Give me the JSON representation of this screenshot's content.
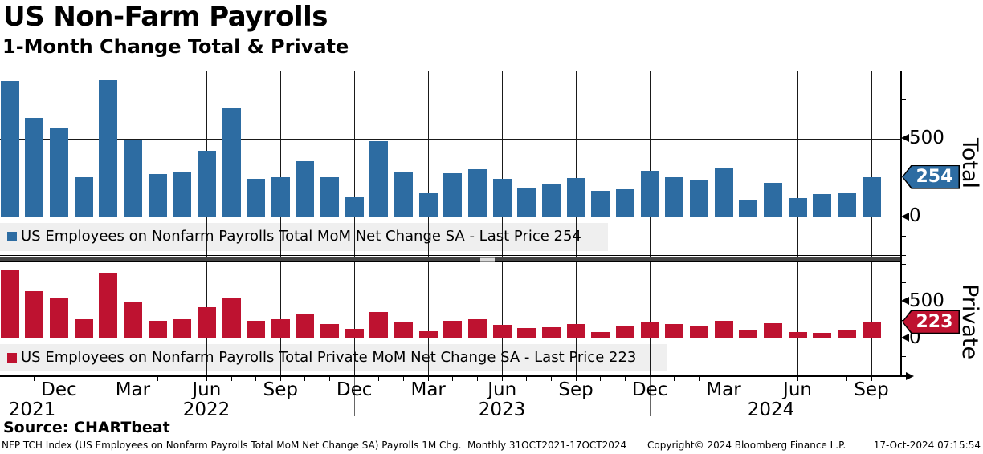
{
  "header": {
    "title": "US Non-Farm Payrolls",
    "subtitle": "1-Month Change Total & Private"
  },
  "chart_data": {
    "type": "bar",
    "title": "US Non-Farm Payrolls",
    "subtitle": "1-Month Change Total & Private",
    "x_frequency": "monthly",
    "months": [
      "Oct-21",
      "Nov-21",
      "Dec-21",
      "Jan-22",
      "Feb-22",
      "Mar-22",
      "Apr-22",
      "May-22",
      "Jun-22",
      "Jul-22",
      "Aug-22",
      "Sep-22",
      "Oct-22",
      "Nov-22",
      "Dec-22",
      "Jan-23",
      "Feb-23",
      "Mar-23",
      "Apr-23",
      "May-23",
      "Jun-23",
      "Jul-23",
      "Aug-23",
      "Sep-23",
      "Oct-23",
      "Nov-23",
      "Dec-23",
      "Jan-24",
      "Feb-24",
      "Mar-24",
      "Apr-24",
      "May-24",
      "Jun-24",
      "Jul-24",
      "Aug-24",
      "Sep-24"
    ],
    "x_tick_labels": [
      "Dec",
      "Mar",
      "Jun",
      "Sep",
      "Dec",
      "Mar",
      "Jun",
      "Sep",
      "Dec",
      "Mar",
      "Jun",
      "Sep"
    ],
    "year_labels": [
      "2021",
      "2022",
      "2023",
      "2024"
    ],
    "grid": true,
    "legend_position": "bottom-left-inside",
    "panels": [
      {
        "id": "total",
        "axis_label": "Total",
        "legend": "US Employees on Nonfarm Payrolls Total MoM Net Change SA - Last Price 254",
        "last_price": 254,
        "color": "#2D6CA2",
        "y_ticks": [
          "500",
          "0"
        ],
        "ylim": [
          -250,
          935
        ],
        "values": [
          870,
          634,
          572,
          252,
          872,
          490,
          271,
          281,
          421,
          692,
          242,
          250,
          356,
          253,
          130,
          483,
          289,
          149,
          278,
          303,
          240,
          180,
          206,
          248,
          163,
          176,
          291,
          252,
          236,
          312,
          108,
          214,
          118,
          142,
          152,
          254
        ]
      },
      {
        "id": "private",
        "axis_label": "Private",
        "legend": "US Employees on Nonfarm Payrolls Total Private MoM Net Change SA - Last Price 223",
        "last_price": 223,
        "color": "#BE1230",
        "y_ticks": [
          "500",
          "0"
        ],
        "ylim": [
          -500,
          1035
        ],
        "values": [
          924,
          641,
          554,
          254,
          888,
          496,
          236,
          254,
          424,
          551,
          235,
          254,
          333,
          192,
          127,
          351,
          228,
          91,
          232,
          254,
          181,
          141,
          145,
          196,
          87,
          159,
          214,
          192,
          174,
          236,
          105,
          207,
          87,
          72,
          102,
          223
        ]
      }
    ]
  },
  "colors": {
    "total_bar": "#2D6CA2",
    "private_bar": "#BE1230",
    "gridline": "#1a1a1a",
    "legend_background": "#EFEFEF",
    "separator": "#444444"
  },
  "source_line": "Source: CHARTbeat",
  "footnote": {
    "description": "NFP TCH Index (US Employees on Nonfarm Payrolls Total MoM Net Change SA) Payrolls 1M Chg.  Monthly 31OCT2021-17OCT2024",
    "copyright": "Copyright© 2024 Bloomberg Finance L.P.",
    "timestamp": "17-Oct-2024 07:15:54"
  }
}
